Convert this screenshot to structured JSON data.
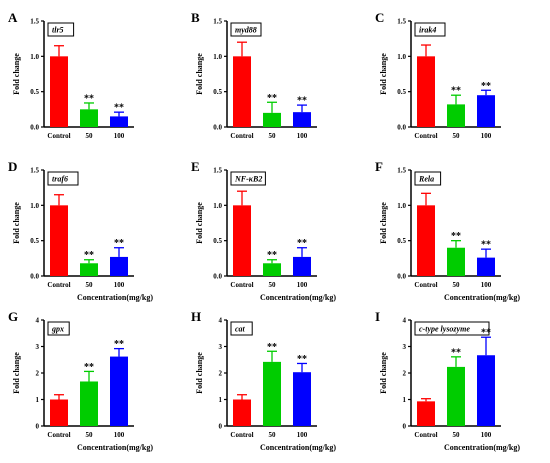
{
  "colors": {
    "control": "#ff0000",
    "dose50": "#00cc00",
    "dose100": "#0000ff"
  },
  "chart_data": [
    {
      "type": "bar",
      "panel": "A",
      "gene": "tlr5",
      "categories": [
        "Control",
        "50",
        "100"
      ],
      "values": [
        1.0,
        0.25,
        0.15
      ],
      "errors": [
        0.15,
        0.09,
        0.06
      ],
      "significance": [
        "",
        "**",
        "**"
      ],
      "xlabel": "",
      "ylabel": "Fold change",
      "ylim": [
        0,
        1.5
      ],
      "yticks": [
        "0.0",
        "0.5",
        "1.0",
        "1.5"
      ]
    },
    {
      "type": "bar",
      "panel": "B",
      "gene": "myd88",
      "categories": [
        "Control",
        "50",
        "100"
      ],
      "values": [
        1.0,
        0.2,
        0.21
      ],
      "errors": [
        0.2,
        0.15,
        0.1
      ],
      "significance": [
        "",
        "**",
        "**"
      ],
      "xlabel": "",
      "ylabel": "Fold change",
      "ylim": [
        0,
        1.5
      ],
      "yticks": [
        "0.0",
        "0.5",
        "1.0",
        "1.5"
      ]
    },
    {
      "type": "bar",
      "panel": "C",
      "gene": "irak4",
      "categories": [
        "Control",
        "50",
        "100"
      ],
      "values": [
        1.0,
        0.32,
        0.45
      ],
      "errors": [
        0.16,
        0.13,
        0.07
      ],
      "significance": [
        "",
        "**",
        "**"
      ],
      "xlabel": "",
      "ylabel": "Fold change",
      "ylim": [
        0,
        1.5
      ],
      "yticks": [
        "0.0",
        "0.5",
        "1.0",
        "1.5"
      ]
    },
    {
      "type": "bar",
      "panel": "D",
      "gene": "traf6",
      "categories": [
        "Control",
        "50",
        "100"
      ],
      "values": [
        1.0,
        0.18,
        0.27
      ],
      "errors": [
        0.15,
        0.05,
        0.13
      ],
      "significance": [
        "",
        "**",
        "**"
      ],
      "xlabel": "Concentration(mg/kg)",
      "ylabel": "Fold change",
      "ylim": [
        0,
        1.5
      ],
      "yticks": [
        "0.0",
        "0.5",
        "1.0",
        "1.5"
      ]
    },
    {
      "type": "bar",
      "panel": "E",
      "gene": "NF-κB2",
      "categories": [
        "Control",
        "50",
        "100"
      ],
      "values": [
        1.0,
        0.18,
        0.27
      ],
      "errors": [
        0.2,
        0.05,
        0.13
      ],
      "significance": [
        "",
        "**",
        "**"
      ],
      "xlabel": "Concentration(mg/kg)",
      "ylabel": "Fold change",
      "ylim": [
        0,
        1.5
      ],
      "yticks": [
        "0.0",
        "0.5",
        "1.0",
        "1.5"
      ]
    },
    {
      "type": "bar",
      "panel": "F",
      "gene": "Rela",
      "categories": [
        "Control",
        "50",
        "100"
      ],
      "values": [
        1.0,
        0.4,
        0.26
      ],
      "errors": [
        0.17,
        0.1,
        0.12
      ],
      "significance": [
        "",
        "**",
        "**"
      ],
      "xlabel": "Concentration(mg/kg)",
      "ylabel": "Fold change",
      "ylim": [
        0,
        1.5
      ],
      "yticks": [
        "0.0",
        "0.5",
        "1.0",
        "1.5"
      ]
    },
    {
      "type": "bar",
      "panel": "G",
      "gene": "gpx",
      "categories": [
        "Control",
        "50",
        "100"
      ],
      "values": [
        1.0,
        1.68,
        2.62
      ],
      "errors": [
        0.18,
        0.38,
        0.3
      ],
      "significance": [
        "",
        "**",
        "**"
      ],
      "xlabel": "Concentration(mg/kg)",
      "ylabel": "Fold change",
      "ylim": [
        0,
        4
      ],
      "yticks": [
        "0",
        "1",
        "2",
        "3",
        "4"
      ]
    },
    {
      "type": "bar",
      "panel": "H",
      "gene": "cat",
      "categories": [
        "Control",
        "50",
        "100"
      ],
      "values": [
        1.0,
        2.42,
        2.03
      ],
      "errors": [
        0.18,
        0.4,
        0.33
      ],
      "significance": [
        "",
        "**",
        "**"
      ],
      "xlabel": "Concentration(mg/kg)",
      "ylabel": "Fold change",
      "ylim": [
        0,
        4
      ],
      "yticks": [
        "0",
        "1",
        "2",
        "3",
        "4"
      ]
    },
    {
      "type": "bar",
      "panel": "I",
      "gene": "c-type lysozyme",
      "categories": [
        "Control",
        "50",
        "100"
      ],
      "values": [
        0.93,
        2.23,
        2.67
      ],
      "errors": [
        0.1,
        0.38,
        0.68
      ],
      "significance": [
        "",
        "**",
        "**"
      ],
      "xlabel": "Concentration(mg/kg)",
      "ylabel": "Fold change",
      "ylim": [
        0,
        4
      ],
      "yticks": [
        "0",
        "1",
        "2",
        "3",
        "4"
      ]
    }
  ]
}
